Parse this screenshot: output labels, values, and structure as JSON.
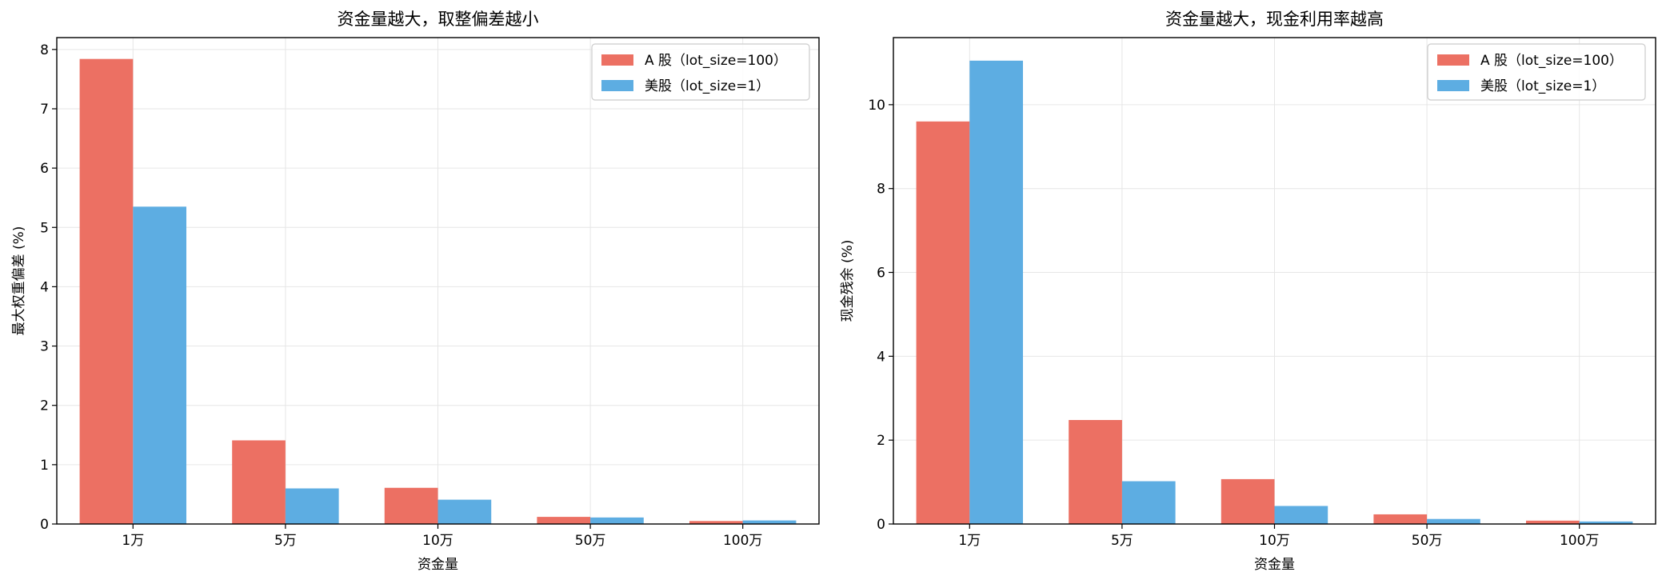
{
  "colors": {
    "a_share": "#EC7063",
    "us_share": "#5DADE2",
    "grid": "#e6e6e6",
    "axis": "#000000"
  },
  "legend": {
    "a_share": "A 股（lot_size=100）",
    "us_share": "美股（lot_size=1）",
    "position": "top-right"
  },
  "chart_data": [
    {
      "type": "bar",
      "title": "资金量越大，取整偏差越小",
      "xlabel": "资金量",
      "ylabel": "最大权重偏差 (%)",
      "categories": [
        "1万",
        "5万",
        "10万",
        "50万",
        "100万"
      ],
      "ylim": [
        0,
        8.2
      ],
      "yticks": [
        0,
        1,
        2,
        3,
        4,
        5,
        6,
        7,
        8
      ],
      "grid": true,
      "legend_position": "top-right",
      "series": [
        {
          "name": "A 股（lot_size=100）",
          "values": [
            7.84,
            1.41,
            0.61,
            0.12,
            0.05
          ]
        },
        {
          "name": "美股（lot_size=1）",
          "values": [
            5.35,
            0.6,
            0.41,
            0.11,
            0.06
          ]
        }
      ]
    },
    {
      "type": "bar",
      "title": "资金量越大，现金利用率越高",
      "xlabel": "资金量",
      "ylabel": "现金残余 (%)",
      "categories": [
        "1万",
        "5万",
        "10万",
        "50万",
        "100万"
      ],
      "ylim": [
        0,
        11.6
      ],
      "yticks": [
        0,
        2,
        4,
        6,
        8,
        10
      ],
      "grid": true,
      "legend_position": "top-right",
      "series": [
        {
          "name": "A 股（lot_size=100）",
          "values": [
            9.6,
            2.48,
            1.07,
            0.23,
            0.08
          ]
        },
        {
          "name": "美股（lot_size=1）",
          "values": [
            11.05,
            1.02,
            0.43,
            0.12,
            0.06
          ]
        }
      ]
    }
  ]
}
